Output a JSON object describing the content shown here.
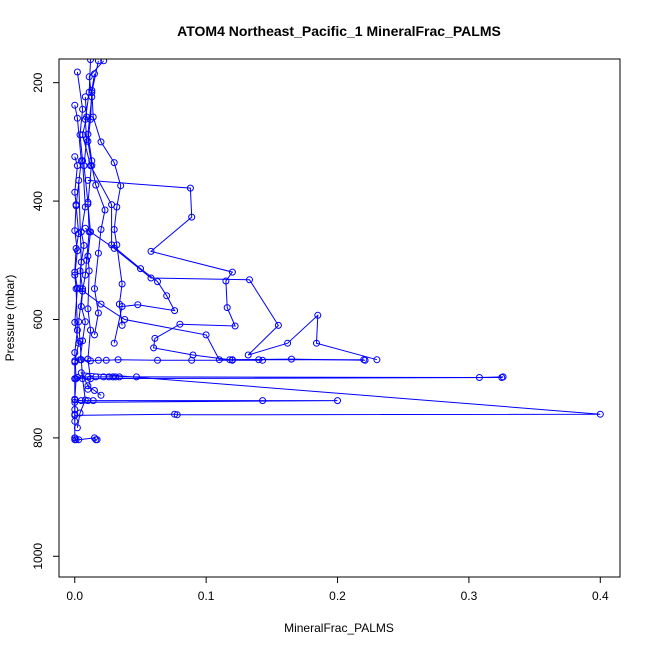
{
  "chart_data": {
    "type": "line",
    "title": "ATOM4 Northeast_Pacific_1 MineralFrac_PALMS",
    "xlabel": "MineralFrac_PALMS",
    "ylabel": "Pressure (mbar)",
    "xlim": [
      -0.012,
      0.415
    ],
    "ylim": [
      1035,
      160
    ],
    "y_inverted": true,
    "xticks": [
      0.0,
      0.1,
      0.2,
      0.3,
      0.4
    ],
    "xtick_labels": [
      "0.0",
      "0.1",
      "0.2",
      "0.3",
      "0.4"
    ],
    "yticks": [
      200,
      400,
      600,
      800,
      1000
    ],
    "ytick_labels": [
      "200",
      "400",
      "600",
      "800",
      "1000"
    ],
    "grid": false,
    "legend": "none",
    "colors": {
      "series": "#0000ff",
      "frame": "#000000"
    },
    "series": [
      {
        "points": [
          [
            0.0,
            238
          ],
          [
            0.002,
            260
          ],
          [
            0.005,
            332
          ],
          [
            0.001,
            408
          ],
          [
            0.003,
            455
          ],
          [
            0.001,
            480
          ],
          [
            0.0,
            520
          ],
          [
            0.002,
            547
          ],
          [
            0.0,
            605
          ],
          [
            0.003,
            640
          ],
          [
            0.0,
            672
          ],
          [
            0.0,
            700
          ],
          [
            0.0,
            735
          ],
          [
            0.0,
            760
          ],
          [
            0.0,
            800
          ],
          [
            0.001,
            803
          ]
        ]
      },
      {
        "points": [
          [
            0.002,
            182
          ],
          [
            0.006,
            245
          ],
          [
            0.004,
            288
          ],
          [
            0.006,
            332
          ],
          [
            0.008,
            410
          ],
          [
            0.005,
            452
          ],
          [
            0.007,
            475
          ],
          [
            0.004,
            518
          ],
          [
            0.006,
            548
          ],
          [
            0.003,
            604
          ],
          [
            0.004,
            637
          ],
          [
            0.005,
            668
          ],
          [
            0.006,
            700
          ],
          [
            0.008,
            736
          ],
          [
            0.004,
            758
          ],
          [
            0.002,
            783
          ]
        ]
      },
      {
        "points": [
          [
            0.022,
            163
          ],
          [
            0.011,
            190
          ],
          [
            0.013,
            224
          ],
          [
            0.01,
            287
          ],
          [
            0.013,
            332
          ],
          [
            0.01,
            405
          ],
          [
            0.012,
            452
          ],
          [
            0.01,
            493
          ],
          [
            0.011,
            518
          ],
          [
            0.01,
            582
          ],
          [
            0.012,
            618
          ],
          [
            0.01,
            667
          ],
          [
            0.012,
            700
          ],
          [
            0.01,
            718
          ]
        ]
      },
      {
        "points": [
          [
            0.0,
            325
          ],
          [
            0.002,
            340
          ],
          [
            0.0,
            385
          ],
          [
            0.001,
            406
          ],
          [
            0.0,
            450
          ],
          [
            0.002,
            484
          ],
          [
            0.0,
            525
          ],
          [
            0.001,
            548
          ],
          [
            0.002,
            618
          ],
          [
            0.0,
            656
          ],
          [
            0.001,
            700
          ],
          [
            0.0,
            735
          ],
          [
            0.0,
            752
          ],
          [
            0.0,
            772
          ]
        ]
      },
      {
        "points": [
          [
            0.012,
            161
          ],
          [
            0.011,
            216
          ],
          [
            0.008,
            262
          ],
          [
            0.009,
            296
          ],
          [
            0.007,
            340
          ],
          [
            0.01,
            402
          ],
          [
            0.011,
            452
          ],
          [
            0.009,
            500
          ],
          [
            0.008,
            525
          ],
          [
            0.006,
            552
          ],
          [
            0.005,
            578
          ],
          [
            0.008,
            604
          ],
          [
            0.006,
            636
          ],
          [
            0.004,
            668
          ]
        ]
      },
      {
        "points": [
          [
            0.018,
            163
          ],
          [
            0.013,
            217
          ],
          [
            0.012,
            262
          ],
          [
            0.01,
            299
          ],
          [
            0.013,
            340
          ],
          [
            0.016,
            373
          ],
          [
            0.023,
            415
          ],
          [
            0.02,
            448
          ],
          [
            0.018,
            488
          ],
          [
            0.015,
            548
          ],
          [
            0.018,
            589
          ],
          [
            0.015,
            626
          ]
        ]
      },
      {
        "points": [
          [
            0.015,
            185
          ],
          [
            0.013,
            213
          ],
          [
            0.014,
            258
          ],
          [
            0.02,
            300
          ],
          [
            0.03,
            335
          ],
          [
            0.035,
            374
          ],
          [
            0.032,
            410
          ],
          [
            0.03,
            448
          ],
          [
            0.032,
            474
          ],
          [
            0.036,
            540
          ],
          [
            0.034,
            574
          ],
          [
            0.036,
            610
          ]
        ]
      },
      {
        "points": [
          [
            0.008,
            224
          ],
          [
            0.009,
            258
          ],
          [
            0.006,
            288
          ],
          [
            0.012,
            340
          ],
          [
            0.028,
            406
          ],
          [
            0.028,
            474
          ],
          [
            0.05,
            514
          ],
          [
            0.063,
            536
          ],
          [
            0.07,
            560
          ],
          [
            0.076,
            585
          ],
          [
            0.048,
            575
          ],
          [
            0.036,
            578
          ],
          [
            0.03,
            640
          ]
        ]
      },
      {
        "points": [
          [
            0.01,
            365
          ],
          [
            0.088,
            378
          ],
          [
            0.089,
            427
          ],
          [
            0.058,
            485
          ],
          [
            0.12,
            520
          ],
          [
            0.115,
            535
          ],
          [
            0.116,
            580
          ],
          [
            0.122,
            611
          ],
          [
            0.08,
            608
          ],
          [
            0.061,
            632
          ],
          [
            0.06,
            648
          ],
          [
            0.09,
            660
          ],
          [
            0.118,
            668
          ],
          [
            0.165,
            667
          ],
          [
            0.221,
            669
          ]
        ]
      },
      {
        "points": [
          [
            0.008,
            446
          ],
          [
            0.03,
            480
          ],
          [
            0.058,
            530
          ],
          [
            0.133,
            533
          ],
          [
            0.155,
            610
          ],
          [
            0.132,
            660
          ],
          [
            0.162,
            640
          ],
          [
            0.185,
            593
          ],
          [
            0.184,
            640
          ],
          [
            0.23,
            668
          ]
        ]
      },
      {
        "points": [
          [
            0.003,
            365
          ],
          [
            0.005,
            503
          ],
          [
            0.004,
            548
          ],
          [
            0.02,
            574
          ],
          [
            0.038,
            600
          ],
          [
            0.1,
            626
          ],
          [
            0.11,
            668
          ],
          [
            0.12,
            668
          ],
          [
            0.14,
            668
          ],
          [
            0.22,
            668
          ]
        ]
      },
      {
        "points": [
          [
            0.0,
            670
          ],
          [
            0.005,
            668
          ],
          [
            0.012,
            670
          ],
          [
            0.018,
            669
          ],
          [
            0.024,
            669
          ],
          [
            0.033,
            668
          ],
          [
            0.063,
            669
          ],
          [
            0.089,
            669
          ],
          [
            0.12,
            669
          ],
          [
            0.143,
            669
          ]
        ]
      },
      {
        "points": [
          [
            0.002,
            698
          ],
          [
            0.01,
            697
          ],
          [
            0.016,
            697
          ],
          [
            0.022,
            697
          ],
          [
            0.026,
            697
          ],
          [
            0.029,
            697
          ],
          [
            0.031,
            697
          ],
          [
            0.034,
            697
          ],
          [
            0.047,
            697
          ],
          [
            0.308,
            698
          ],
          [
            0.326,
            697
          ],
          [
            0.325,
            698
          ],
          [
            0.0,
            700
          ]
        ]
      },
      {
        "points": [
          [
            0.0,
            736
          ],
          [
            0.005,
            737
          ],
          [
            0.01,
            737
          ],
          [
            0.014,
            737
          ],
          [
            0.143,
            737
          ],
          [
            0.2,
            737
          ],
          [
            0.0,
            740
          ]
        ]
      },
      {
        "points": [
          [
            0.0,
            762
          ],
          [
            0.076,
            760
          ],
          [
            0.078,
            761
          ],
          [
            0.4,
            760
          ],
          [
            0.005,
            690
          ],
          [
            0.01,
            712
          ],
          [
            0.015,
            720
          ],
          [
            0.02,
            728
          ]
        ]
      },
      {
        "points": [
          [
            0.0,
            800
          ],
          [
            0.0,
            803
          ],
          [
            0.003,
            803
          ],
          [
            0.015,
            800
          ],
          [
            0.016,
            803
          ],
          [
            0.017,
            803
          ]
        ]
      }
    ]
  }
}
